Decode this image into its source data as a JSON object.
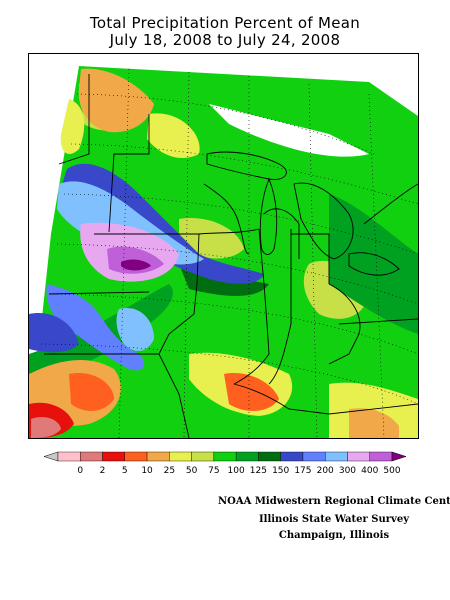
{
  "header": {
    "title": "Total Precipitation Percent of Mean",
    "subtitle": "July 18, 2008 to July 24, 2008"
  },
  "legend": {
    "tick_labels": [
      "0",
      "2",
      "5",
      "10",
      "25",
      "50",
      "75",
      "100",
      "125",
      "150",
      "175",
      "200",
      "300",
      "400",
      "500"
    ],
    "colors": [
      "#c8c8c8",
      "#ffc0cb",
      "#e07a7a",
      "#e8100c",
      "#ff6020",
      "#f0a848",
      "#e8f050",
      "#c8e048",
      "#10d010",
      "#00a020",
      "#006e10",
      "#3848c8",
      "#6080ff",
      "#80c0ff",
      "#e8a8f0",
      "#c060d8",
      "#800080"
    ]
  },
  "credits": {
    "line1": "NOAA Midwestern Regional Climate Cent",
    "line2": "Illinois State Water Survey",
    "line3": "Champaign, Illinois"
  }
}
